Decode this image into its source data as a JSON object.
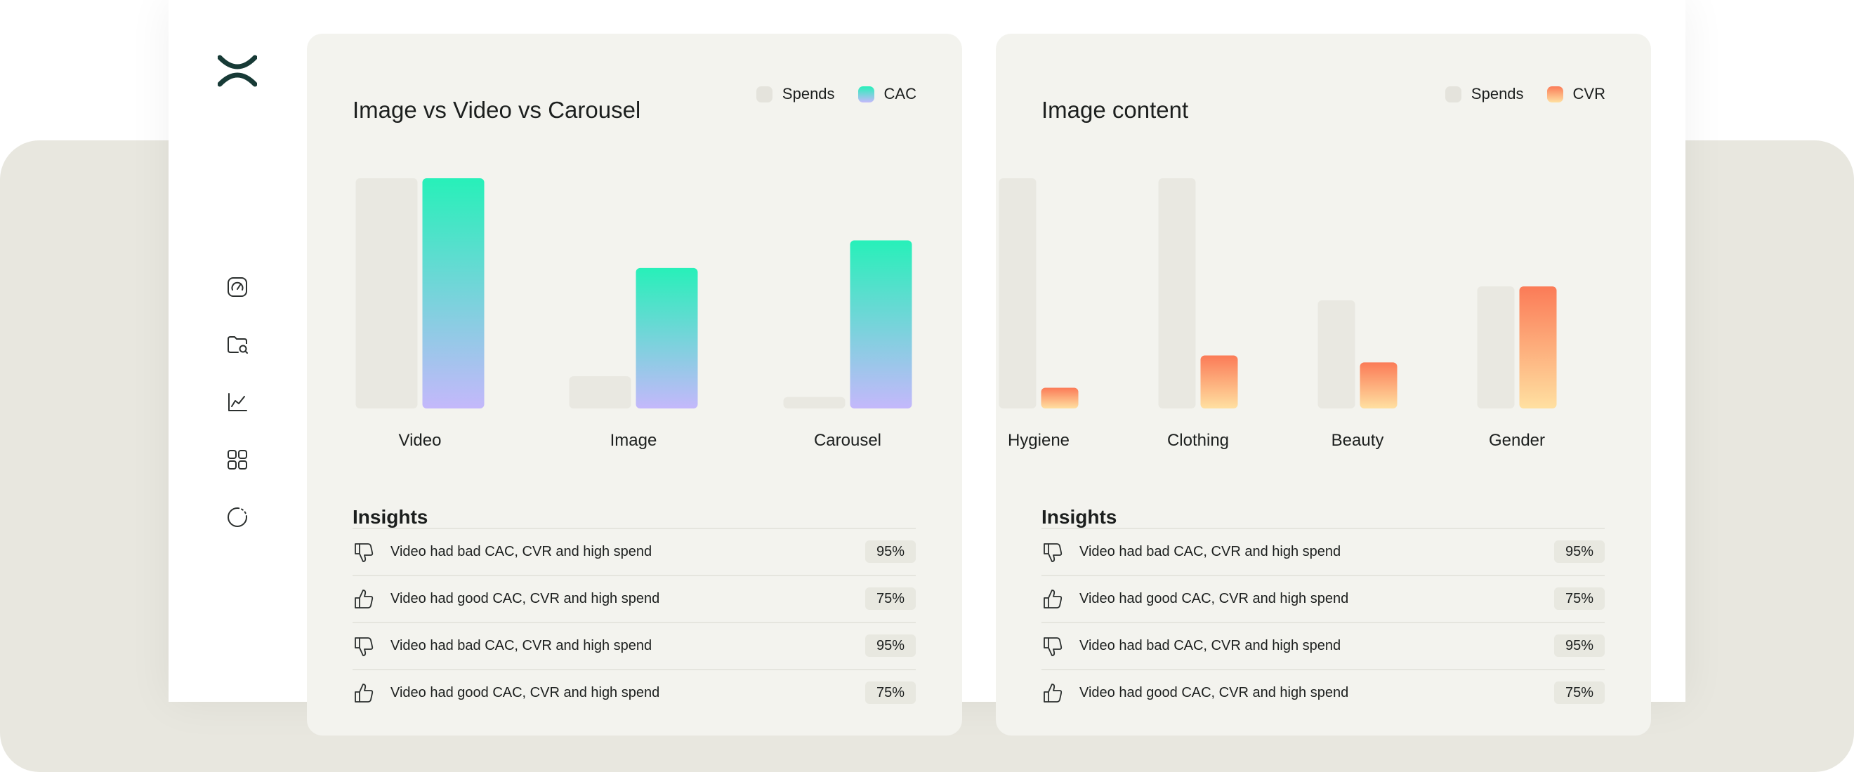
{
  "sidebar": {
    "items": [
      {
        "icon": "gauge-icon"
      },
      {
        "icon": "folder-search-icon"
      },
      {
        "icon": "line-chart-icon"
      },
      {
        "icon": "grid-icon"
      },
      {
        "icon": "loading-circle-icon"
      }
    ]
  },
  "colors": {
    "spends": "#e9e8e1",
    "cac_top": "#27f0b9",
    "cac_bottom": "#c4b8fb",
    "cvr_top": "#fb7b57",
    "cvr_bottom": "#ffe0a1"
  },
  "left_card": {
    "title": "Image vs Video vs Carousel",
    "legend": [
      {
        "label": "Spends"
      },
      {
        "label": "CAC"
      }
    ],
    "insights_title": "Insights",
    "insights": [
      {
        "type": "thumbs-down",
        "text": "Video had bad CAC, CVR and high spend",
        "value": "95%"
      },
      {
        "type": "thumbs-up",
        "text": "Video had good CAC, CVR and high spend",
        "value": "75%"
      },
      {
        "type": "thumbs-down",
        "text": "Video had bad CAC, CVR and high spend",
        "value": "95%"
      },
      {
        "type": "thumbs-up",
        "text": "Video had good CAC, CVR and high spend",
        "value": "75%"
      }
    ]
  },
  "right_card": {
    "title": "Image content",
    "legend": [
      {
        "label": "Spends"
      },
      {
        "label": "CVR"
      }
    ],
    "insights_title": "Insights",
    "insights": [
      {
        "type": "thumbs-down",
        "text": "Video had bad CAC, CVR and high spend",
        "value": "95%"
      },
      {
        "type": "thumbs-up",
        "text": "Video had good CAC, CVR and high spend",
        "value": "75%"
      },
      {
        "type": "thumbs-down",
        "text": "Video had bad CAC, CVR and high spend",
        "value": "95%"
      },
      {
        "type": "thumbs-up",
        "text": "Video had good CAC, CVR and high spend",
        "value": "75%"
      }
    ]
  },
  "chart_data": [
    {
      "type": "bar",
      "title": "Image vs Video vs Carousel",
      "categories": [
        "Video",
        "Image",
        "Carousel"
      ],
      "series": [
        {
          "name": "Spends",
          "values": [
            100,
            14,
            5
          ]
        },
        {
          "name": "CAC",
          "values": [
            100,
            61,
            73
          ]
        }
      ],
      "ylim": [
        0,
        100
      ],
      "grid": false,
      "legend": "top-right"
    },
    {
      "type": "bar",
      "title": "Image content",
      "categories": [
        "Hygiene",
        "Clothing",
        "Beauty",
        "Gender"
      ],
      "series": [
        {
          "name": "Spends",
          "values": [
            100,
            100,
            47,
            53
          ]
        },
        {
          "name": "CVR",
          "values": [
            9,
            23,
            20,
            53
          ]
        }
      ],
      "ylim": [
        0,
        100
      ],
      "grid": false,
      "legend": "top-right"
    }
  ]
}
